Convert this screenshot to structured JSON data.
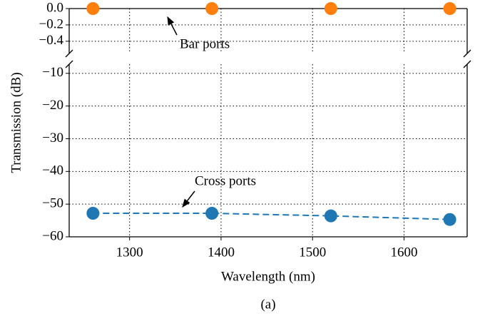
{
  "chart_data": {
    "type": "line",
    "caption": "(a)",
    "xlabel": "Wavelength (nm)",
    "ylabel": "Transmission (dB)",
    "x": [
      1260,
      1390,
      1520,
      1650
    ],
    "xlim": [
      1234,
      1669
    ],
    "xticks": [
      1300,
      1400,
      1500,
      1600
    ],
    "grid": true,
    "broken_y_axis": true,
    "panels": [
      {
        "ylim": [
          -0.55,
          0.0
        ],
        "yticks": [
          {
            "value": 0.0,
            "label": "0.0"
          },
          {
            "value": -0.2,
            "label": "−0.2"
          },
          {
            "value": -0.4,
            "label": "−0.4"
          }
        ]
      },
      {
        "ylim": [
          -60,
          -7.2
        ],
        "yticks": [
          {
            "value": -10,
            "label": "−10"
          },
          {
            "value": -20,
            "label": "−20"
          },
          {
            "value": -30,
            "label": "−30"
          },
          {
            "value": -40,
            "label": "−40"
          },
          {
            "value": -50,
            "label": "−50"
          },
          {
            "value": -60,
            "label": "−60"
          }
        ]
      }
    ],
    "series": [
      {
        "name": "Bar ports",
        "color": "#ff7f0e",
        "panel": 0,
        "linestyle": "none",
        "values": [
          0.0,
          0.0,
          0.0,
          0.0
        ]
      },
      {
        "name": "Cross ports",
        "color": "#1f77b4",
        "panel": 1,
        "linestyle": "dashed",
        "values": [
          -52.8,
          -52.8,
          -53.6,
          -54.7
        ]
      }
    ]
  }
}
